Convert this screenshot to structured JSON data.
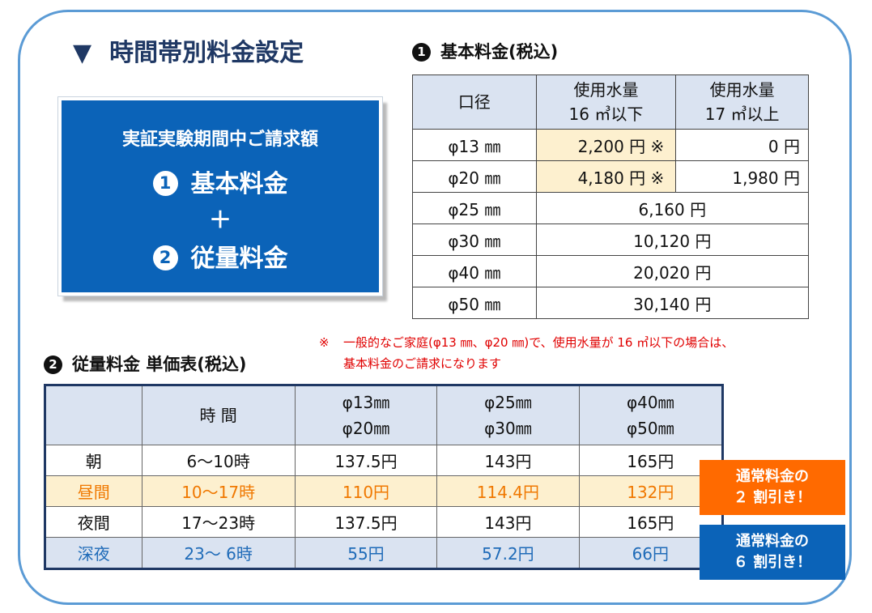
{
  "main_title": {
    "marker": "▼",
    "text": "時間帯別料金設定"
  },
  "billing": {
    "line1": "実証実験期間中ご請求額",
    "item1_num": "1",
    "item1_label": "基本料金",
    "plus": "＋",
    "item2_num": "2",
    "item2_label": "従量料金"
  },
  "basic_fee": {
    "num": "1",
    "title": "基本料金(税込)",
    "headers": [
      "口径",
      "使用水量",
      "16 ㎥以下",
      "使用水量",
      "17 ㎥以上"
    ],
    "rows": [
      {
        "dia": "φ13 ㎜",
        "under16": "2,200 円 ※",
        "over17": "0 円"
      },
      {
        "dia": "φ20 ㎜",
        "under16": "4,180 円 ※",
        "over17": "1,980 円"
      },
      {
        "dia": "φ25 ㎜",
        "merged": "6,160 円"
      },
      {
        "dia": "φ30 ㎜",
        "merged": "10,120 円"
      },
      {
        "dia": "φ40 ㎜",
        "merged": "20,020 円"
      },
      {
        "dia": "φ50 ㎜",
        "merged": "30,140 円"
      }
    ]
  },
  "note": {
    "mark": "※",
    "line1": "一般的なご家庭(φ13 ㎜、φ20 ㎜)で、使用水量が 16 ㎥以下の場合は、",
    "line2": "基本料金のご請求になります"
  },
  "unit_price": {
    "num": "2",
    "title": "従量料金 単価表(税込)",
    "header_time": "時 間",
    "col1": [
      "φ13㎜",
      "φ20㎜"
    ],
    "col2": [
      "φ25㎜",
      "φ30㎜"
    ],
    "col3": [
      "φ40㎜",
      "φ50㎜"
    ],
    "rows": [
      {
        "period": "朝",
        "time": "6～10時",
        "p1": "137.5円",
        "p2": "143円",
        "p3": "165円"
      },
      {
        "period": "昼間",
        "time": "10～17時",
        "p1": "110円",
        "p2": "114.4円",
        "p3": "132円"
      },
      {
        "period": "夜間",
        "time": "17～23時",
        "p1": "137.5円",
        "p2": "143円",
        "p3": "165円"
      },
      {
        "period": "深夜",
        "time": "23～ 6時",
        "p1": "55円",
        "p2": "57.2円",
        "p3": "66円"
      }
    ]
  },
  "badges": {
    "day_line1": "通常料金の",
    "day_line2": "２ 割引き！",
    "night_line1": "通常料金の",
    "night_line2": "６ 割引き！"
  },
  "colors": {
    "frame": "#5b9bd5",
    "billing_box": "#0b63b8",
    "header_bg": "#dae3f1",
    "highlight_bg": "#fdf0cf",
    "noon_text": "#f07800",
    "night_text": "#1f6bb8",
    "note_text": "#e00000",
    "badge_orange": "#ff6a00",
    "badge_blue": "#0b63b8"
  }
}
